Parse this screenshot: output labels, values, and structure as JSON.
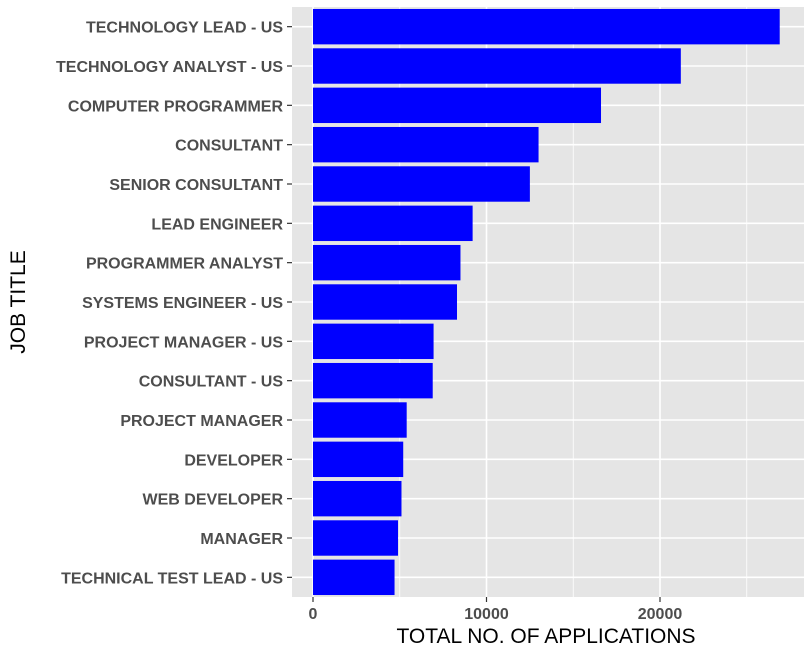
{
  "chart_data": {
    "type": "bar",
    "orientation": "horizontal",
    "title": "",
    "xlabel": "TOTAL NO. OF APPLICATIONS",
    "ylabel": "JOB TITLE",
    "xlim": [
      0,
      28300
    ],
    "x_ticks": [
      0,
      10000,
      20000
    ],
    "x_tick_labels": [
      "0",
      "10000",
      "20000"
    ],
    "grid": true,
    "bar_color": "#0000ff",
    "panel_color": "#e5e5e5",
    "grid_color": "#ffffff",
    "categories": [
      "TECHNOLOGY LEAD - US",
      "TECHNOLOGY ANALYST - US",
      "COMPUTER PROGRAMMER",
      "CONSULTANT",
      "SENIOR CONSULTANT",
      "LEAD ENGINEER",
      "PROGRAMMER ANALYST",
      "SYSTEMS ENGINEER - US",
      "PROJECT MANAGER - US",
      "CONSULTANT - US",
      "PROJECT MANAGER",
      "DEVELOPER",
      "WEB DEVELOPER",
      "MANAGER",
      "TECHNICAL TEST LEAD - US"
    ],
    "values": [
      26900,
      21200,
      16600,
      13000,
      12500,
      9200,
      8500,
      8300,
      6950,
      6900,
      5400,
      5200,
      5100,
      4900,
      4700
    ]
  }
}
